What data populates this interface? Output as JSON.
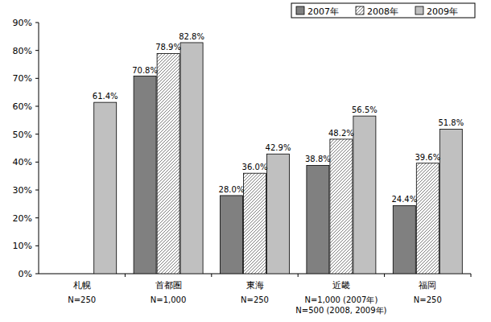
{
  "chart_data": {
    "type": "bar",
    "categories": [
      "札幌",
      "首都圏",
      "東海",
      "近畿",
      "福岡"
    ],
    "category_sublabels": [
      [
        "N=250"
      ],
      [
        "N=1,000"
      ],
      [
        "N=250"
      ],
      [
        "N=1,000 (2007年)",
        "N=500 (2008, 2009年)"
      ],
      [
        "N=250"
      ]
    ],
    "series": [
      {
        "name": "2007年",
        "color": "#808080",
        "values": [
          null,
          70.8,
          28.0,
          38.8,
          24.4
        ],
        "value_labels": [
          null,
          "70.8%",
          "28.0%",
          "38.8%",
          "24.4%"
        ]
      },
      {
        "name": "2008年",
        "color": "#707070",
        "values": [
          null,
          78.9,
          36.0,
          48.2,
          39.6
        ],
        "value_labels": [
          null,
          "78.9%",
          "36.0%",
          "48.2%",
          "39.6%"
        ]
      },
      {
        "name": "2009年",
        "color": "#c0c0c0",
        "values": [
          61.4,
          82.8,
          42.9,
          56.5,
          51.8
        ],
        "value_labels": [
          "61.4%",
          "82.8%",
          "42.9%",
          "56.5%",
          "51.8%"
        ]
      }
    ],
    "ylim": [
      0,
      90
    ],
    "yticks": [
      {
        "value": 0,
        "label": "0%"
      },
      {
        "value": 10,
        "label": "10%"
      },
      {
        "value": 20,
        "label": "20%"
      },
      {
        "value": 30,
        "label": "30%"
      },
      {
        "value": 40,
        "label": "40%"
      },
      {
        "value": 50,
        "label": "50%"
      },
      {
        "value": 60,
        "label": "60%"
      },
      {
        "value": 70,
        "label": "70%"
      },
      {
        "value": 80,
        "label": "80%"
      },
      {
        "value": 90,
        "label": "90%"
      }
    ],
    "grid": false,
    "legend": "top-right",
    "data_labels": true
  }
}
